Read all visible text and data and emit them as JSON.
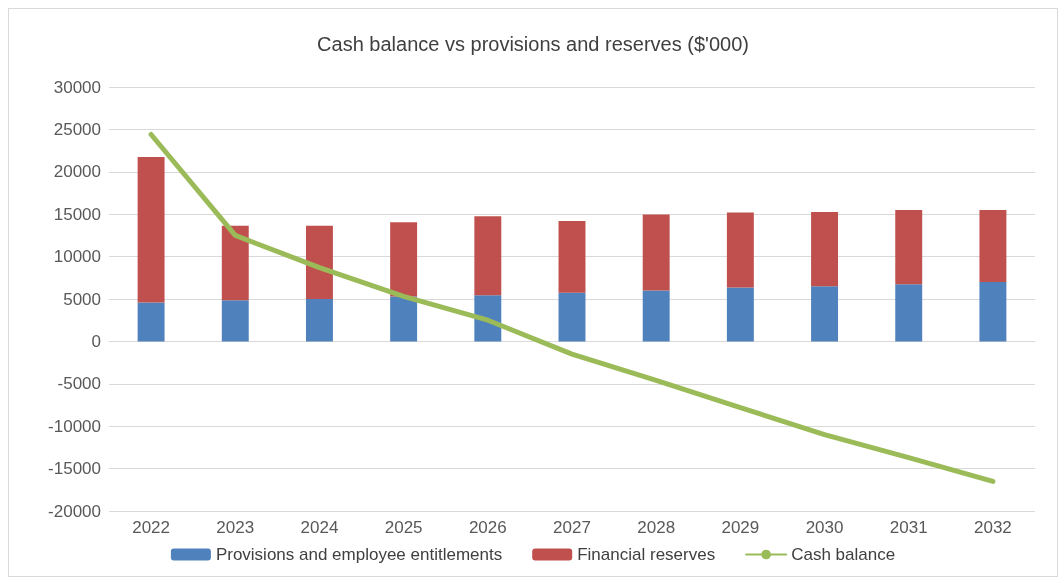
{
  "chart_data": {
    "type": "bar",
    "title": "Cash balance vs provisions and reserves ($'000)",
    "categories": [
      "2022",
      "2023",
      "2024",
      "2025",
      "2026",
      "2027",
      "2028",
      "2029",
      "2030",
      "2031",
      "2032"
    ],
    "stacked": true,
    "series": [
      {
        "name": "Provisions and employee entitlements",
        "color": "#4f81bd",
        "values": [
          4600,
          4850,
          5000,
          5300,
          5450,
          5750,
          6000,
          6350,
          6500,
          6750,
          7000
        ]
      },
      {
        "name": "Financial reserves",
        "color": "#c0504d",
        "values": [
          17150,
          8800,
          8650,
          8750,
          9300,
          8450,
          8950,
          8850,
          8750,
          8750,
          8500
        ]
      },
      {
        "name": "Cash balance",
        "type": "line",
        "color": "#9bbb59",
        "values": [
          24400,
          12500,
          8700,
          5300,
          2500,
          -1500,
          -4600,
          -7800,
          -11000,
          -13700,
          -16500
        ]
      }
    ],
    "ylim": [
      -20000,
      30000
    ],
    "yticks": [
      -20000,
      -15000,
      -10000,
      -5000,
      0,
      5000,
      10000,
      15000,
      20000,
      25000,
      30000
    ],
    "grid": "y",
    "legend": "bottom",
    "marker": "none"
  }
}
